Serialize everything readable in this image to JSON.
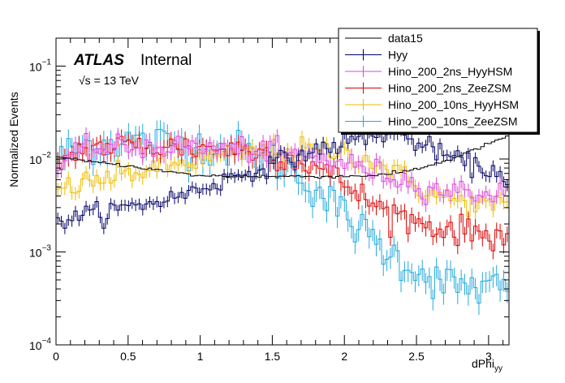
{
  "chart_data": {
    "type": "histogram",
    "title": "",
    "xlabel": "dPhi",
    "xlabel_sub": "yy",
    "ylabel": "Normalized Events",
    "xlim": [
      0,
      3.14159
    ],
    "ylim": [
      0.0001,
      0.2
    ],
    "yscale": "log",
    "x_ticks": [
      0,
      0.5,
      1,
      1.5,
      2,
      2.5,
      3
    ],
    "x_tick_labels": [
      "0",
      "0.5",
      "1",
      "1.5",
      "2",
      "2.5",
      "3"
    ],
    "y_ticks": [
      0.0001,
      0.001,
      0.01,
      0.1
    ],
    "y_tick_labels": [
      {
        "base": "10",
        "exp": "−4"
      },
      {
        "base": "10",
        "exp": "−3"
      },
      {
        "base": "10",
        "exp": "−2"
      },
      {
        "base": "10",
        "exp": "−1"
      }
    ],
    "annotations": {
      "experiment": "ATLAS",
      "status": "Internal",
      "energy": "√s = 13 TeV"
    },
    "legend_position": "top-right",
    "nbins": 128,
    "series": [
      {
        "name": "data15",
        "color": "#000000",
        "style": "step",
        "jitter": 0.02,
        "profile": [
          [
            0,
            0.0105
          ],
          [
            0.2,
            0.0095
          ],
          [
            0.5,
            0.0085
          ],
          [
            0.8,
            0.0072
          ],
          [
            1.0,
            0.0066
          ],
          [
            1.5,
            0.0065
          ],
          [
            2.0,
            0.0065
          ],
          [
            2.3,
            0.0068
          ],
          [
            2.5,
            0.0078
          ],
          [
            2.7,
            0.0095
          ],
          [
            2.9,
            0.0125
          ],
          [
            3.14,
            0.018
          ]
        ]
      },
      {
        "name": "Hyy",
        "color": "#000066",
        "style": "errorbar",
        "jitter": 0.12,
        "profile": [
          [
            0,
            0.0022
          ],
          [
            0.2,
            0.0025
          ],
          [
            0.5,
            0.003
          ],
          [
            0.8,
            0.0038
          ],
          [
            1.0,
            0.0048
          ],
          [
            1.3,
            0.007
          ],
          [
            1.6,
            0.01
          ],
          [
            1.9,
            0.0135
          ],
          [
            2.1,
            0.0165
          ],
          [
            2.3,
            0.019
          ],
          [
            2.4,
            0.0175
          ],
          [
            2.6,
            0.013
          ],
          [
            2.8,
            0.0095
          ],
          [
            3.0,
            0.0075
          ],
          [
            3.14,
            0.0065
          ]
        ]
      },
      {
        "name": "Hino_200_2ns_HyyHSM",
        "color": "#dd44dd",
        "style": "errorbar",
        "jitter": 0.15,
        "profile": [
          [
            0,
            0.0075
          ],
          [
            0.2,
            0.0125
          ],
          [
            0.5,
            0.0135
          ],
          [
            0.8,
            0.0135
          ],
          [
            1.2,
            0.013
          ],
          [
            1.5,
            0.012
          ],
          [
            1.8,
            0.0105
          ],
          [
            2.0,
            0.009
          ],
          [
            2.2,
            0.0075
          ],
          [
            2.4,
            0.006
          ],
          [
            2.6,
            0.0048
          ],
          [
            2.8,
            0.0045
          ],
          [
            3.14,
            0.0042
          ]
        ]
      },
      {
        "name": "Hino_200_2ns_ZeeZSM",
        "color": "#dd0000",
        "style": "errorbar",
        "jitter": 0.18,
        "profile": [
          [
            0,
            0.009
          ],
          [
            0.2,
            0.013
          ],
          [
            0.5,
            0.014
          ],
          [
            0.8,
            0.0135
          ],
          [
            1.2,
            0.013
          ],
          [
            1.5,
            0.0115
          ],
          [
            1.8,
            0.0085
          ],
          [
            2.0,
            0.0055
          ],
          [
            2.2,
            0.0032
          ],
          [
            2.4,
            0.0024
          ],
          [
            2.6,
            0.0019
          ],
          [
            2.8,
            0.0017
          ],
          [
            3.14,
            0.0015
          ]
        ]
      },
      {
        "name": "Hino_200_10ns_HyyHSM",
        "color": "#eebb00",
        "style": "errorbar",
        "jitter": 0.15,
        "profile": [
          [
            0,
            0.0045
          ],
          [
            0.2,
            0.0055
          ],
          [
            0.5,
            0.007
          ],
          [
            0.8,
            0.0085
          ],
          [
            1.1,
            0.0105
          ],
          [
            1.4,
            0.012
          ],
          [
            1.7,
            0.0125
          ],
          [
            2.0,
            0.0118
          ],
          [
            2.2,
            0.0095
          ],
          [
            2.4,
            0.0065
          ],
          [
            2.6,
            0.0042
          ],
          [
            2.8,
            0.0035
          ],
          [
            3.14,
            0.003
          ]
        ]
      },
      {
        "name": "Hino_200_10ns_ZeeZSM",
        "color": "#22aadd",
        "style": "errorbar",
        "jitter": 0.25,
        "profile": [
          [
            0,
            0.01
          ],
          [
            0.2,
            0.0145
          ],
          [
            0.5,
            0.0155
          ],
          [
            0.8,
            0.015
          ],
          [
            1.2,
            0.013
          ],
          [
            1.5,
            0.01
          ],
          [
            1.7,
            0.0065
          ],
          [
            1.9,
            0.0035
          ],
          [
            2.1,
            0.0018
          ],
          [
            2.3,
            0.001
          ],
          [
            2.5,
            0.00065
          ],
          [
            2.7,
            0.00045
          ],
          [
            3.0,
            0.0004
          ],
          [
            3.14,
            0.0004
          ]
        ]
      }
    ]
  }
}
